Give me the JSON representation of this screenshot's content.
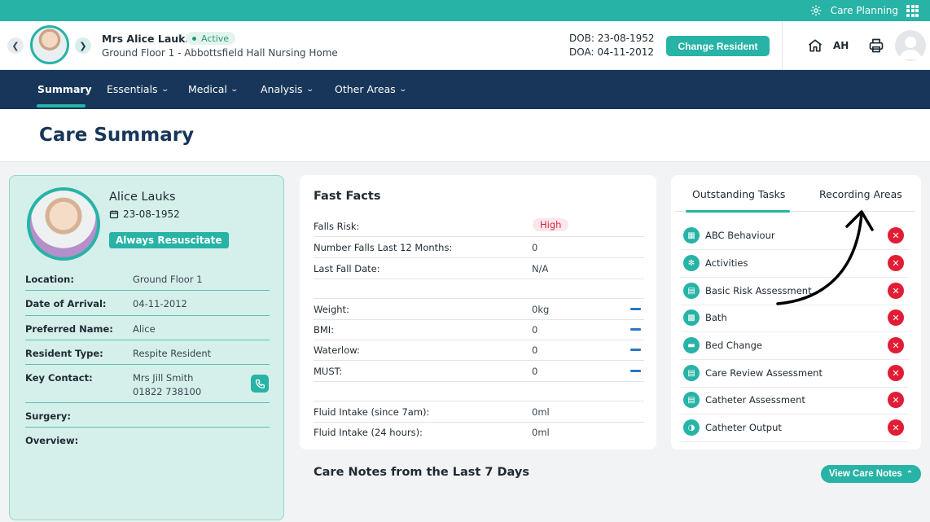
{
  "topbar": {
    "app_label": "Care Planning"
  },
  "resident_bar": {
    "name": "Mrs Alice Lauks",
    "status": "Active",
    "location": "Ground Floor 1 - Abbottsfield Hall Nursing Home",
    "dob": "DOB: 23-08-1952",
    "doa": "DOA: 04-11-2012",
    "change_button": "Change Resident",
    "user_initials": "AH"
  },
  "nav": {
    "items": [
      "Summary",
      "Essentials",
      "Medical",
      "Analysis",
      "Other Areas"
    ]
  },
  "page": {
    "title": "Care Summary"
  },
  "profile": {
    "name": "Alice Lauks",
    "dob": "23-08-1952",
    "resus_badge": "Always Resuscitate",
    "rows": [
      {
        "label": "Location:",
        "value": "Ground Floor 1"
      },
      {
        "label": "Date of Arrival:",
        "value": "04-11-2012"
      },
      {
        "label": "Preferred Name:",
        "value": "Alice"
      },
      {
        "label": "Resident Type:",
        "value": "Respite Resident"
      },
      {
        "label": "Key Contact:",
        "value": "Mrs Jill Smith",
        "value2": "01822 738100"
      },
      {
        "label": "Surgery:",
        "value": ""
      },
      {
        "label": "Overview:",
        "value": ""
      }
    ]
  },
  "fast_facts": {
    "title": "Fast Facts",
    "rows": [
      {
        "label": "Falls Risk:",
        "value": "High"
      },
      {
        "label": "Number Falls Last 12 Months:",
        "value": "0"
      },
      {
        "label": "Last Fall Date:",
        "value": "N/A"
      },
      {
        "label": "Weight:",
        "value": "0kg"
      },
      {
        "label": "BMI:",
        "value": "0"
      },
      {
        "label": "Waterlow:",
        "value": "0"
      },
      {
        "label": "MUST:",
        "value": "0"
      },
      {
        "label": "Fluid Intake (since 7am):",
        "value": "0ml"
      },
      {
        "label": "Fluid Intake (24 hours):",
        "value": "0ml"
      }
    ]
  },
  "tasks": {
    "tabs": [
      "Outstanding Tasks",
      "Recording Areas"
    ],
    "items": [
      "ABC Behaviour",
      "Activities",
      "Basic Risk Assessment",
      "Bath",
      "Bed Change",
      "Care Review Assessment",
      "Catheter Assessment",
      "Catheter Output"
    ]
  },
  "care_notes": {
    "title": "Care Notes from the Last 7 Days",
    "view_button": "View Care Notes"
  },
  "colors": {
    "teal": "#27b3a6",
    "navy": "#17365a",
    "danger": "#e11d35"
  }
}
